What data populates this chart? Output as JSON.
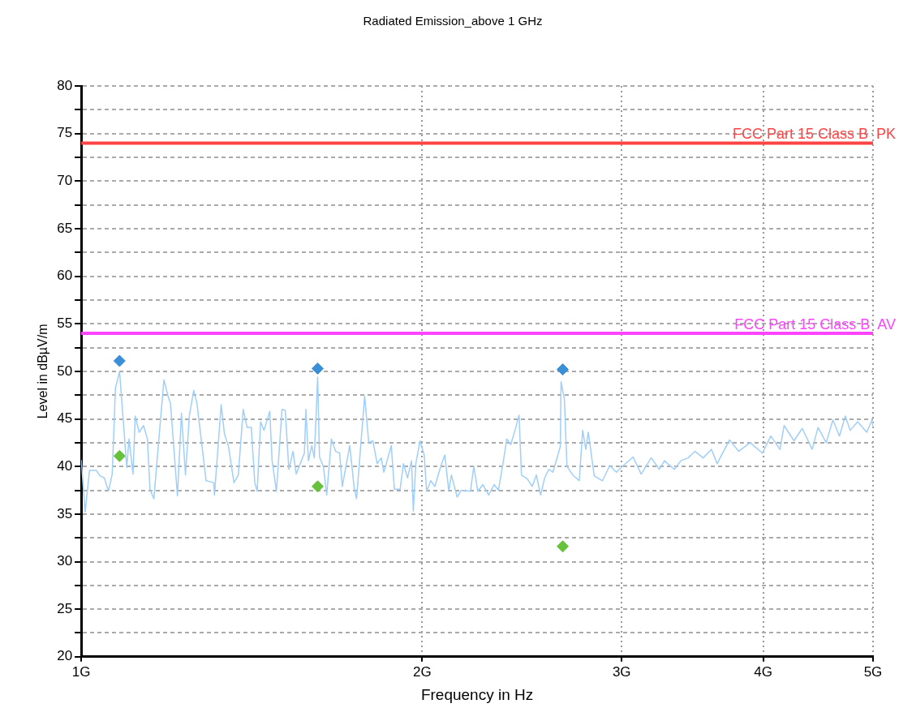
{
  "chart_data": {
    "type": "line",
    "title": "Radiated Emission_above 1 GHz",
    "xlabel": "Frequency in Hz",
    "ylabel": "Level in dBµV/m",
    "log": "x",
    "grid": true,
    "xlim": [
      1,
      5
    ],
    "xticks": [
      {
        "value": 1,
        "label": "1G"
      },
      {
        "value": 2,
        "label": "2G"
      },
      {
        "value": 3,
        "label": "3G"
      },
      {
        "value": 4,
        "label": "4G"
      },
      {
        "value": 5,
        "label": "5G"
      }
    ],
    "ylim": [
      20,
      80
    ],
    "yticks": [
      20,
      {
        "value": 22.5,
        "label": null
      },
      25,
      {
        "value": 27.5,
        "label": null
      },
      30,
      {
        "value": 32.5,
        "label": null
      },
      35,
      {
        "value": 37.5,
        "label": null
      },
      40,
      {
        "value": 42.5,
        "label": null
      },
      45,
      {
        "value": 47.5,
        "label": null
      },
      50,
      {
        "value": 52.5,
        "label": null
      },
      55,
      {
        "value": 57.5,
        "label": null
      },
      60,
      {
        "value": 62.5,
        "label": null
      },
      65,
      {
        "value": 67.5,
        "label": null
      },
      70,
      {
        "value": 72.5,
        "label": null
      },
      75,
      {
        "value": 77.5,
        "label": null
      },
      80
    ],
    "ref_lines": [
      {
        "axis": "y",
        "value": 74,
        "label": "FCC Part 15 Class B  PK",
        "color": "#ff4444"
      },
      {
        "axis": "y",
        "value": 54,
        "label": "FCC Part 15 Class B  AV",
        "color": "#ff44ff"
      }
    ],
    "series": [
      {
        "color": "#9fcffa",
        "marker": "none",
        "x": [
          1.0,
          1.008,
          1.017,
          1.031,
          1.039,
          1.048,
          1.057,
          1.065,
          1.072,
          1.081,
          1.097,
          1.102,
          1.111,
          1.116,
          1.125,
          1.135,
          1.144,
          1.15,
          1.159,
          1.183,
          1.193,
          1.199,
          1.216,
          1.226,
          1.236,
          1.246,
          1.257,
          1.265,
          1.289,
          1.309,
          1.311,
          1.329,
          1.338,
          1.349,
          1.364,
          1.376,
          1.39,
          1.401,
          1.413,
          1.423,
          1.43,
          1.44,
          1.45,
          1.467,
          1.474,
          1.487,
          1.504,
          1.514,
          1.525,
          1.538,
          1.548,
          1.574,
          1.579,
          1.587,
          1.598,
          1.606,
          1.617,
          1.623,
          1.636,
          1.647,
          1.663,
          1.677,
          1.691,
          1.7,
          1.726,
          1.741,
          1.75,
          1.779,
          1.794,
          1.809,
          1.825,
          1.84,
          1.85,
          1.862,
          1.878,
          1.89,
          1.912,
          1.925,
          1.941,
          1.957,
          1.964,
          1.974,
          1.991,
          2.008,
          2.018,
          2.035,
          2.052,
          2.08,
          2.094,
          2.111,
          2.122,
          2.147,
          2.165,
          2.206,
          2.221,
          2.239,
          2.262,
          2.289,
          2.315,
          2.335,
          2.359,
          2.375,
          2.394,
          2.415,
          2.435,
          2.447,
          2.476,
          2.501,
          2.522,
          2.544,
          2.565,
          2.587,
          2.608,
          2.626,
          2.648,
          2.652,
          2.67,
          2.684,
          2.716,
          2.752,
          2.771,
          2.789,
          2.803,
          2.837,
          2.885,
          2.928,
          2.968,
          3.003,
          3.07,
          3.121,
          3.185,
          3.239,
          3.272,
          3.338,
          3.383,
          3.434,
          3.481,
          3.54,
          3.6,
          3.642,
          3.735,
          3.805,
          3.895,
          3.994,
          4.062,
          4.138,
          4.173,
          4.258,
          4.33,
          4.418,
          4.471,
          4.546,
          4.608,
          4.67,
          4.726,
          4.773,
          4.846,
          4.936,
          4.99,
          5.0
        ],
        "values": [
          40.7,
          35.2,
          39.6,
          39.6,
          39.0,
          38.8,
          37.4,
          39.2,
          48.2,
          50.0,
          39.9,
          42.9,
          39.2,
          45.3,
          43.6,
          44.3,
          42.9,
          37.6,
          36.6,
          49.1,
          47.4,
          46.6,
          36.9,
          45.6,
          39.1,
          45.4,
          48.0,
          46.7,
          38.5,
          38.3,
          37.0,
          46.5,
          43.4,
          42.1,
          38.3,
          39.1,
          46.0,
          44.1,
          44.1,
          38.3,
          37.4,
          44.7,
          43.8,
          45.8,
          40.6,
          37.4,
          46.0,
          45.9,
          39.7,
          41.6,
          39.2,
          41.4,
          46.0,
          40.6,
          42.2,
          40.9,
          49.4,
          41.0,
          40.0,
          37.0,
          42.9,
          41.6,
          41.4,
          37.9,
          42.2,
          37.9,
          36.6,
          47.4,
          42.5,
          42.7,
          40.3,
          40.9,
          39.4,
          40.6,
          42.2,
          37.6,
          37.6,
          40.3,
          38.8,
          40.6,
          35.3,
          40.3,
          42.7,
          41.2,
          37.4,
          38.5,
          37.9,
          40.3,
          41.2,
          37.4,
          39.1,
          36.8,
          37.5,
          37.4,
          40.0,
          37.4,
          38.1,
          37.0,
          38.1,
          37.5,
          40.6,
          42.9,
          42.3,
          43.8,
          45.4,
          39.1,
          38.7,
          37.9,
          39.1,
          37.0,
          38.8,
          39.7,
          39.4,
          40.6,
          42.1,
          48.9,
          47.1,
          40.0,
          39.1,
          38.5,
          43.8,
          41.8,
          43.6,
          39.0,
          38.5,
          40.1,
          39.4,
          40.0,
          41.0,
          39.2,
          40.9,
          39.7,
          40.6,
          39.7,
          40.6,
          40.9,
          41.6,
          40.9,
          41.8,
          40.3,
          42.8,
          41.6,
          42.5,
          41.4,
          43.2,
          41.8,
          44.3,
          42.7,
          44.0,
          41.8,
          44.1,
          42.5,
          44.9,
          43.2,
          45.3,
          43.8,
          44.7,
          43.6,
          44.9,
          44.1
        ]
      },
      {
        "type": "scatter",
        "color": "#3a8fd9",
        "marker": "diamond",
        "x": [
          1.081,
          1.617,
          2.661
        ],
        "values": [
          51.1,
          50.3,
          50.2
        ]
      },
      {
        "type": "scatter",
        "color": "#66c23a",
        "marker": "diamond",
        "x": [
          1.081,
          1.617,
          2.661
        ],
        "values": [
          41.1,
          37.9,
          31.6
        ]
      }
    ]
  }
}
